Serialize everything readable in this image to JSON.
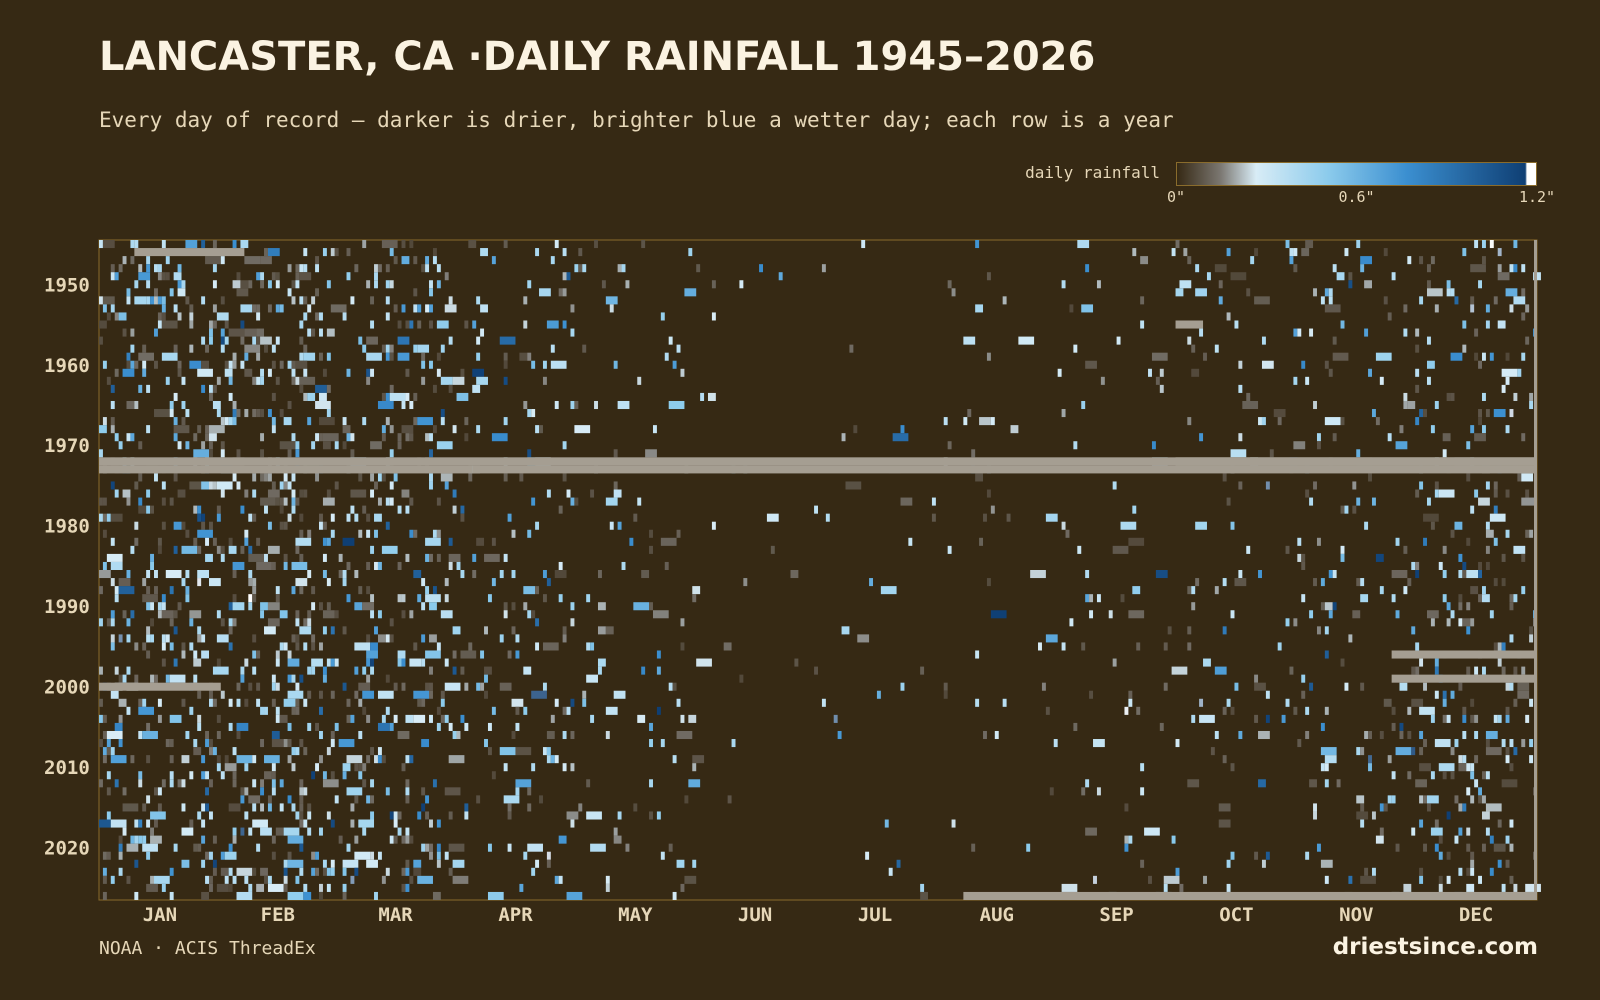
{
  "header": {
    "title": "LANCASTER, CA ·DAILY RAINFALL 1945–2026",
    "subtitle": "Every day of record — darker is drier, brighter blue a wetter day; each row is a year"
  },
  "legend": {
    "label": "daily rainfall",
    "ticks": [
      "0\"",
      "0.6\"",
      "1.2\""
    ],
    "tick_values": [
      0,
      0.6,
      1.2
    ],
    "colors": {
      "dry": "#362914",
      "light": "#d8ecf6",
      "mid": "#8ccbec",
      "blue": "#3b8fd0",
      "dark": "#0f3f74",
      "max": "#ffffff",
      "missing": "#a59e92"
    }
  },
  "footer": {
    "source": "NOAA · ACIS ThreadEx",
    "brand": "driestsince.com"
  },
  "chart_data": {
    "type": "heatmap",
    "title": "LANCASTER, CA ·DAILY RAINFALL 1945–2026",
    "x_axis": {
      "type": "day-of-year",
      "month_labels": [
        "JAN",
        "FEB",
        "MAR",
        "APR",
        "MAY",
        "JUN",
        "JUL",
        "AUG",
        "SEP",
        "OCT",
        "NOV",
        "DEC"
      ]
    },
    "y_axis": {
      "range": [
        1945,
        2026
      ],
      "tick_labels": [
        "1950",
        "1960",
        "1970",
        "1980",
        "1990",
        "2000",
        "2010",
        "2020"
      ],
      "tick_values": [
        1950,
        1960,
        1970,
        1980,
        1990,
        2000,
        2010,
        2020
      ]
    },
    "value_range": [
      0,
      1.2
    ],
    "units": "inches",
    "missing_periods": [
      {
        "start": "1946-01-10",
        "end": "1946-02-06"
      },
      {
        "start": "1955-10-01",
        "end": "1955-10-07"
      },
      {
        "start": "1972-01-01",
        "end": "1973-04-04"
      },
      {
        "start": "1973-04-05",
        "end": "1973-12-31"
      },
      {
        "start": "1972-10-01",
        "end": "1972-12-31"
      },
      {
        "start": "1996-11-25",
        "end": "1996-12-31"
      },
      {
        "start": "1999-11-25",
        "end": "1999-12-31"
      },
      {
        "start": "2000-01-01",
        "end": "2000-01-31"
      },
      {
        "start": "2026-08-08",
        "end": "2026-12-31"
      }
    ],
    "season_wetness": [
      0.19,
      0.21,
      0.16,
      0.075,
      0.04,
      0.01,
      0.012,
      0.02,
      0.035,
      0.045,
      0.075,
      0.13
    ]
  }
}
